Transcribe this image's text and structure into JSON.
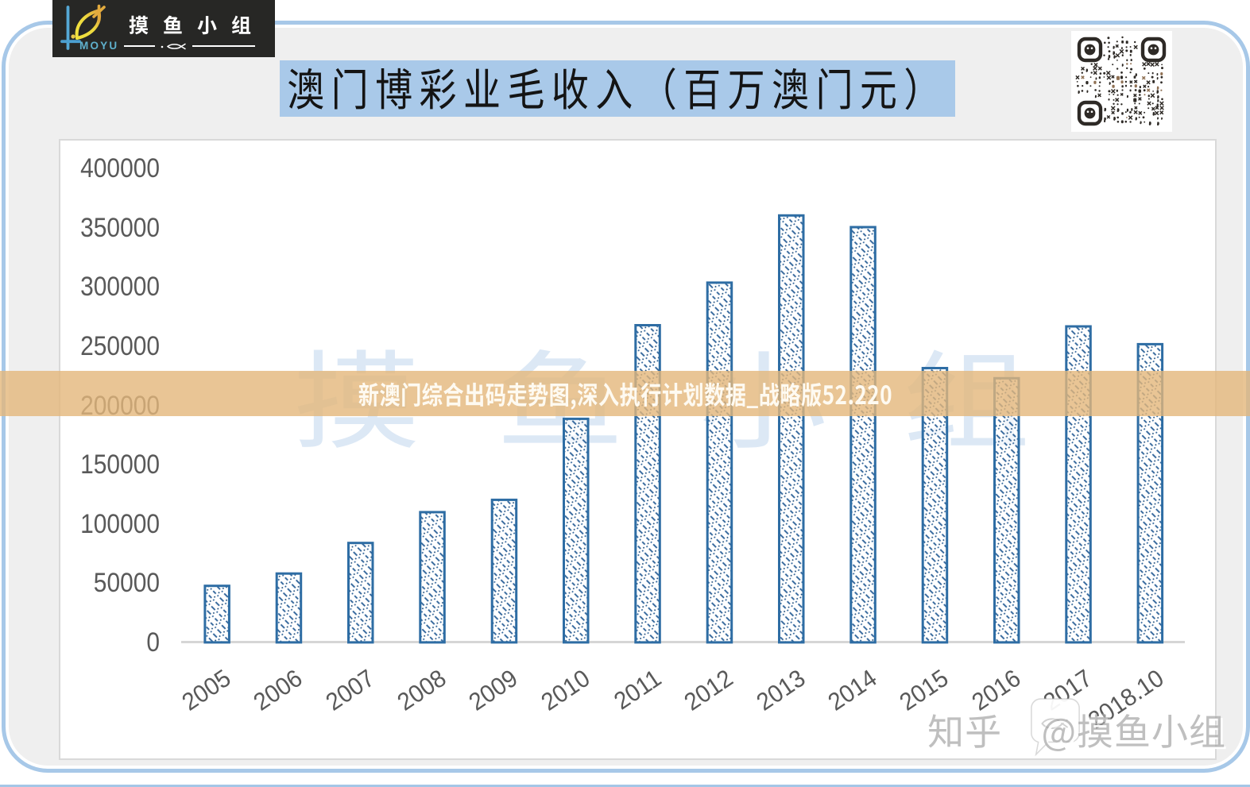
{
  "page": {
    "background": "#ffffff",
    "frame_border_color": "#a7c8e8",
    "inner_background": "#efefef"
  },
  "logo": {
    "brand_cn": "摸鱼小组",
    "brand_en": "MOYU",
    "icon": "fish-axis-logo",
    "background": "#272725"
  },
  "title": {
    "text": "澳门博彩业毛收入（百万澳门元）",
    "background": "#a9c9e9"
  },
  "banner": {
    "text": "新澳门综合出码走势图,深入执行计划数据_战略版52.220",
    "background": "#e4b67a",
    "text_color": "#fefaf1"
  },
  "watermarks": {
    "center_text": "摸鱼小组",
    "center_color": "#dce8f5",
    "bottom_right_text": "知乎 @摸鱼小组",
    "bottom_right_color": "#9a9a9a"
  },
  "chart_data": {
    "type": "bar",
    "title": "澳门博彩业毛收入（百万澳门元）",
    "categories": [
      "2005",
      "2006",
      "2007",
      "2008",
      "2009",
      "2010",
      "2011",
      "2012",
      "2013",
      "2014",
      "2015",
      "2016",
      "2017",
      "2018.10"
    ],
    "values": [
      47700,
      58100,
      83900,
      109900,
      120300,
      188700,
      267700,
      303600,
      360300,
      350500,
      231500,
      222900,
      266700,
      251700
    ],
    "xlabel": "",
    "ylabel": "",
    "ylim": [
      0,
      400000
    ],
    "ytick_step": 50000,
    "grid": "off",
    "legend": "none",
    "bar_border_color": "#2e6da4",
    "bar_hatch_color": "#255988",
    "axis_text_color": "#595959",
    "axis_line_color": "#d6d6d6"
  }
}
